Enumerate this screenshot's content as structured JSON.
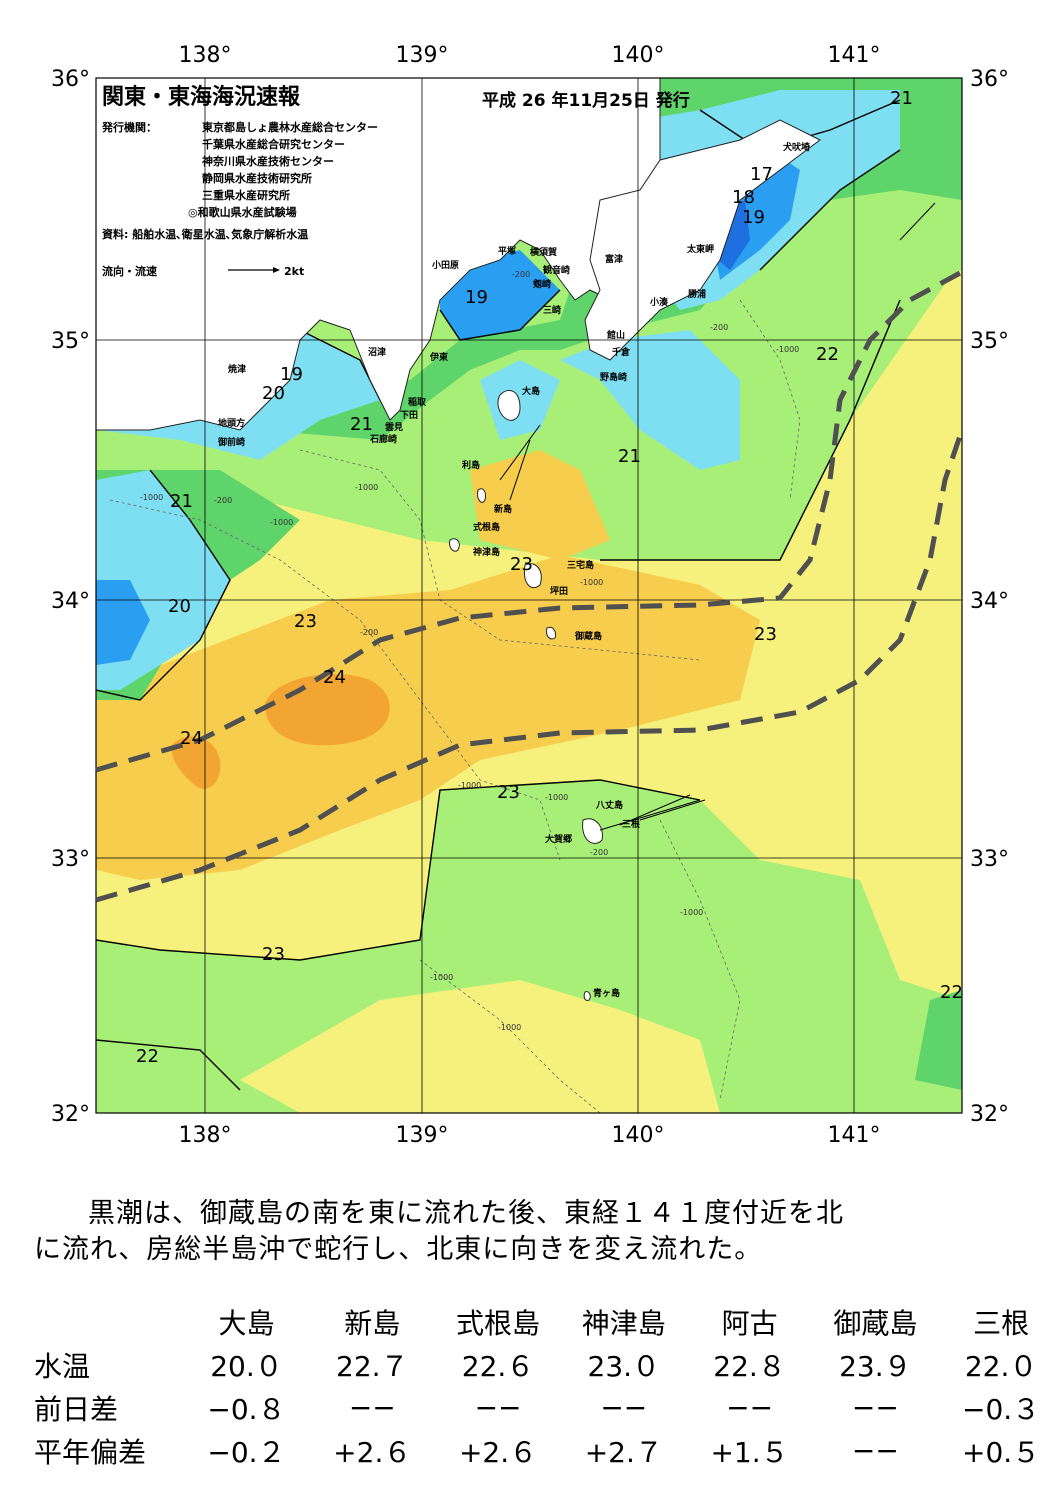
{
  "map": {
    "title": "関東・東海海況速報",
    "issue_date": "平成 26 年11月25日 発行",
    "issuers_label": "発行機関：",
    "issuers": [
      "東京都島しょ農林水産総合センター",
      "千葉県水産総合研究センター",
      "神奈川県水産技術センター",
      "静岡県水産技術研究所",
      "三重県水産研究所",
      "◎和歌山県水産試験場"
    ],
    "sources": "資料: 船舶水温､衛星水温､気象庁解析水温",
    "flow_legend_label": "流向・流速",
    "flow_legend_unit": "2kt",
    "lon_labels": [
      "138°",
      "139°",
      "140°",
      "141°"
    ],
    "lat_labels": [
      "36°",
      "35°",
      "34°",
      "33°",
      "32°"
    ],
    "temp_labels": [
      "21",
      "17",
      "18",
      "19",
      "19",
      "19",
      "20",
      "21",
      "22",
      "21",
      "21",
      "20",
      "23",
      "24",
      "24",
      "23",
      "23",
      "23",
      "23",
      "22",
      "22"
    ],
    "isobath_labels": [
      "-200",
      "-1000",
      "-200",
      "-1000",
      "-200",
      "-1000",
      "-1000",
      "-200",
      "-1000",
      "-1000",
      "-1000",
      "-1000",
      "-1000",
      "-200",
      "-1000"
    ],
    "places": [
      "犬吠埼",
      "太東岬",
      "勝浦",
      "小湊",
      "富津",
      "横須賀",
      "観音崎",
      "剱崎",
      "三崎",
      "館山",
      "千倉",
      "野島崎",
      "平塚",
      "小田原",
      "沼津",
      "伊東",
      "焼津",
      "稲取",
      "下田",
      "雲見",
      "石廊崎",
      "地頭方",
      "御前崎",
      "大島",
      "利島",
      "新島",
      "式根島",
      "神津島",
      "三宅島",
      "坪田",
      "御蔵島",
      "八丈島",
      "三根",
      "大賀郷",
      "青ヶ島"
    ],
    "colors": {
      "sea_14": "#1e6fe0",
      "sea_17": "#2a9ef0",
      "sea_19": "#7fdff2",
      "sea_20": "#8fe6e0",
      "sea_21": "#5ed46a",
      "sea_22": "#a8ef78",
      "sea_23": "#f6f17c",
      "sea_23_5": "#f6cd4c",
      "sea_24": "#f3a534",
      "kuroshio": "#505050"
    }
  },
  "summary": {
    "line1": "黒潮は、御蔵島の南を東に流れた後、東経１４１度付近を北",
    "line2": "に流れ、房総半島沖で蛇行し、北東に向きを変え流れた。"
  },
  "table": {
    "headers": [
      "大島",
      "新島",
      "式根島",
      "神津島",
      "阿古",
      "御蔵島",
      "三根"
    ],
    "rows": [
      {
        "label": "水温",
        "values": [
          "20.０",
          "22.７",
          "22.６",
          "23.０",
          "22.８",
          "23.９",
          "22.０"
        ]
      },
      {
        "label": "前日差",
        "values": [
          "−0.８",
          "−−",
          "−−",
          "−−",
          "−−",
          "−−",
          "−0.３"
        ]
      },
      {
        "label": "平年偏差",
        "values": [
          "−0.２",
          "+2.６",
          "+2.６",
          "+2.７",
          "+1.５",
          "−−",
          "+0.５"
        ]
      }
    ]
  }
}
